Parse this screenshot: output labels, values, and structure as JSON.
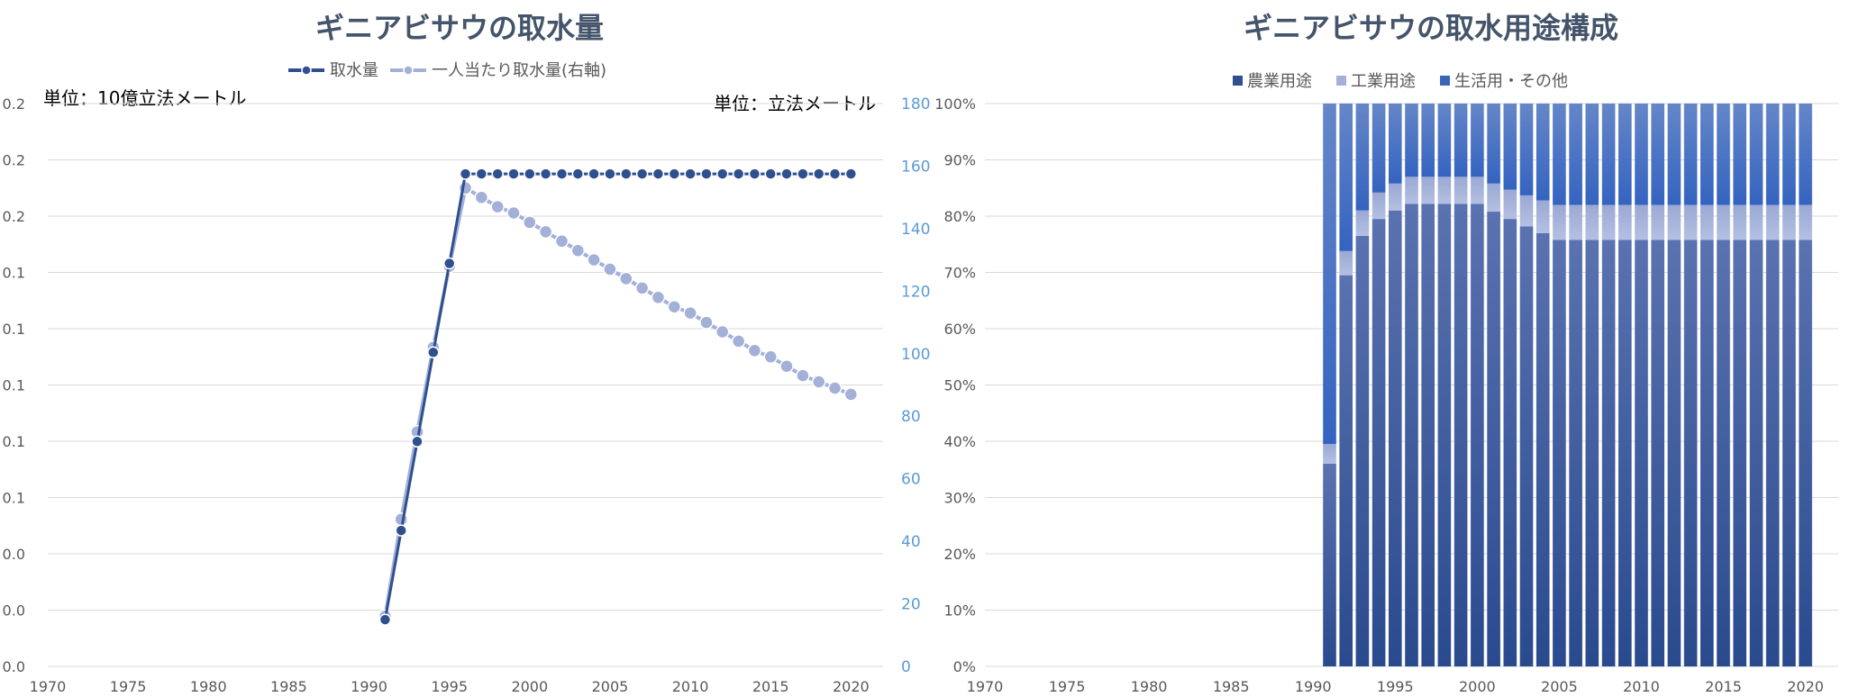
{
  "chart_data": [
    {
      "type": "line",
      "title": "ギニアビサウの取水量",
      "unit_left": "単位：10億立法メートル",
      "unit_right": "単位：立法メートル",
      "x_ticks": [
        "1970",
        "1975",
        "1980",
        "1985",
        "1990",
        "1995",
        "2000",
        "2005",
        "2010",
        "2015",
        "2020"
      ],
      "y_left_ticks": [
        "0.0",
        "0.0",
        "0.0",
        "0.1",
        "0.1",
        "0.1",
        "0.1",
        "0.1",
        "0.2",
        "0.2",
        "0.2"
      ],
      "y_right_ticks": [
        "0",
        "20",
        "40",
        "60",
        "80",
        "100",
        "120",
        "140",
        "160",
        "180"
      ],
      "xlim": [
        1970,
        2022
      ],
      "ylim_left": [
        0,
        0.2
      ],
      "ylim_right": [
        0,
        180
      ],
      "series": [
        {
          "name": "取水量",
          "axis": "left",
          "color": "#2f4f8f",
          "x": [
            1991,
            1992,
            1993,
            1994,
            1995,
            1996,
            1997,
            1998,
            1999,
            2000,
            2001,
            2002,
            2003,
            2004,
            2005,
            2006,
            2007,
            2008,
            2009,
            2010,
            2011,
            2012,
            2013,
            2014,
            2015,
            2016,
            2017,
            2018,
            2019,
            2020
          ],
          "y": [
            0.0166,
            0.0483,
            0.0799,
            0.1116,
            0.1432,
            0.175,
            0.175,
            0.175,
            0.175,
            0.175,
            0.175,
            0.175,
            0.175,
            0.175,
            0.175,
            0.175,
            0.175,
            0.175,
            0.175,
            0.175,
            0.175,
            0.175,
            0.175,
            0.175,
            0.175,
            0.175,
            0.175,
            0.175,
            0.175,
            0.175
          ]
        },
        {
          "name": "一人当たり取水量(右軸)",
          "axis": "right",
          "color": "#a3b0d8",
          "x": [
            1991,
            1992,
            1993,
            1994,
            1995,
            1996,
            1997,
            1998,
            1999,
            2000,
            2001,
            2002,
            2003,
            2004,
            2005,
            2006,
            2007,
            2008,
            2009,
            2010,
            2011,
            2012,
            2013,
            2014,
            2015,
            2016,
            2017,
            2018,
            2019,
            2020
          ],
          "y": [
            16,
            47,
            75,
            102,
            128,
            153,
            150,
            147,
            145,
            142,
            139,
            136,
            133,
            130,
            127,
            124,
            121,
            118,
            115,
            113,
            110,
            107,
            104,
            101,
            99,
            96,
            93,
            91,
            89,
            87
          ]
        }
      ]
    },
    {
      "type": "bar",
      "stacked": true,
      "title": "ギニアビサウの取水用途構成",
      "x_ticks": [
        "1970",
        "1975",
        "1980",
        "1985",
        "1990",
        "1995",
        "2000",
        "2005",
        "2010",
        "2015",
        "2020"
      ],
      "y_ticks": [
        "0%",
        "10%",
        "20%",
        "30%",
        "40%",
        "50%",
        "60%",
        "70%",
        "80%",
        "90%",
        "100%"
      ],
      "xlim": [
        1970,
        2022
      ],
      "ylim": [
        0,
        100
      ],
      "categories": [
        1991,
        1992,
        1993,
        1994,
        1995,
        1996,
        1997,
        1998,
        1999,
        2000,
        2001,
        2002,
        2003,
        2004,
        2005,
        2006,
        2007,
        2008,
        2009,
        2010,
        2011,
        2012,
        2013,
        2014,
        2015,
        2016,
        2017,
        2018,
        2019,
        2020
      ],
      "series": [
        {
          "name": "農業用途",
          "color": "#2f4f8f",
          "values": [
            36,
            69.5,
            76.5,
            79.5,
            81,
            82.2,
            82.2,
            82.2,
            82.2,
            82.2,
            80.8,
            79.5,
            78.2,
            77,
            75.8,
            75.8,
            75.8,
            75.8,
            75.8,
            75.8,
            75.8,
            75.8,
            75.8,
            75.8,
            75.8,
            75.8,
            75.8,
            75.8,
            75.8,
            75.8
          ]
        },
        {
          "name": "工業用途",
          "color": "#a3b0d8",
          "values": [
            3.5,
            4.3,
            4.5,
            4.7,
            4.8,
            4.8,
            4.8,
            4.8,
            4.8,
            4.8,
            5,
            5.2,
            5.5,
            5.8,
            6.2,
            6.2,
            6.2,
            6.2,
            6.2,
            6.2,
            6.2,
            6.2,
            6.2,
            6.2,
            6.2,
            6.2,
            6.2,
            6.2,
            6.2,
            6.2
          ]
        },
        {
          "name": "生活用・その他",
          "color": "#3a66b8",
          "values": [
            60.5,
            26.2,
            19,
            15.8,
            14.2,
            13,
            13,
            13,
            13,
            13,
            14.2,
            15.3,
            16.3,
            17.2,
            18,
            18,
            18,
            18,
            18,
            18,
            18,
            18,
            18,
            18,
            18,
            18,
            18,
            18,
            18,
            18
          ]
        }
      ]
    }
  ]
}
